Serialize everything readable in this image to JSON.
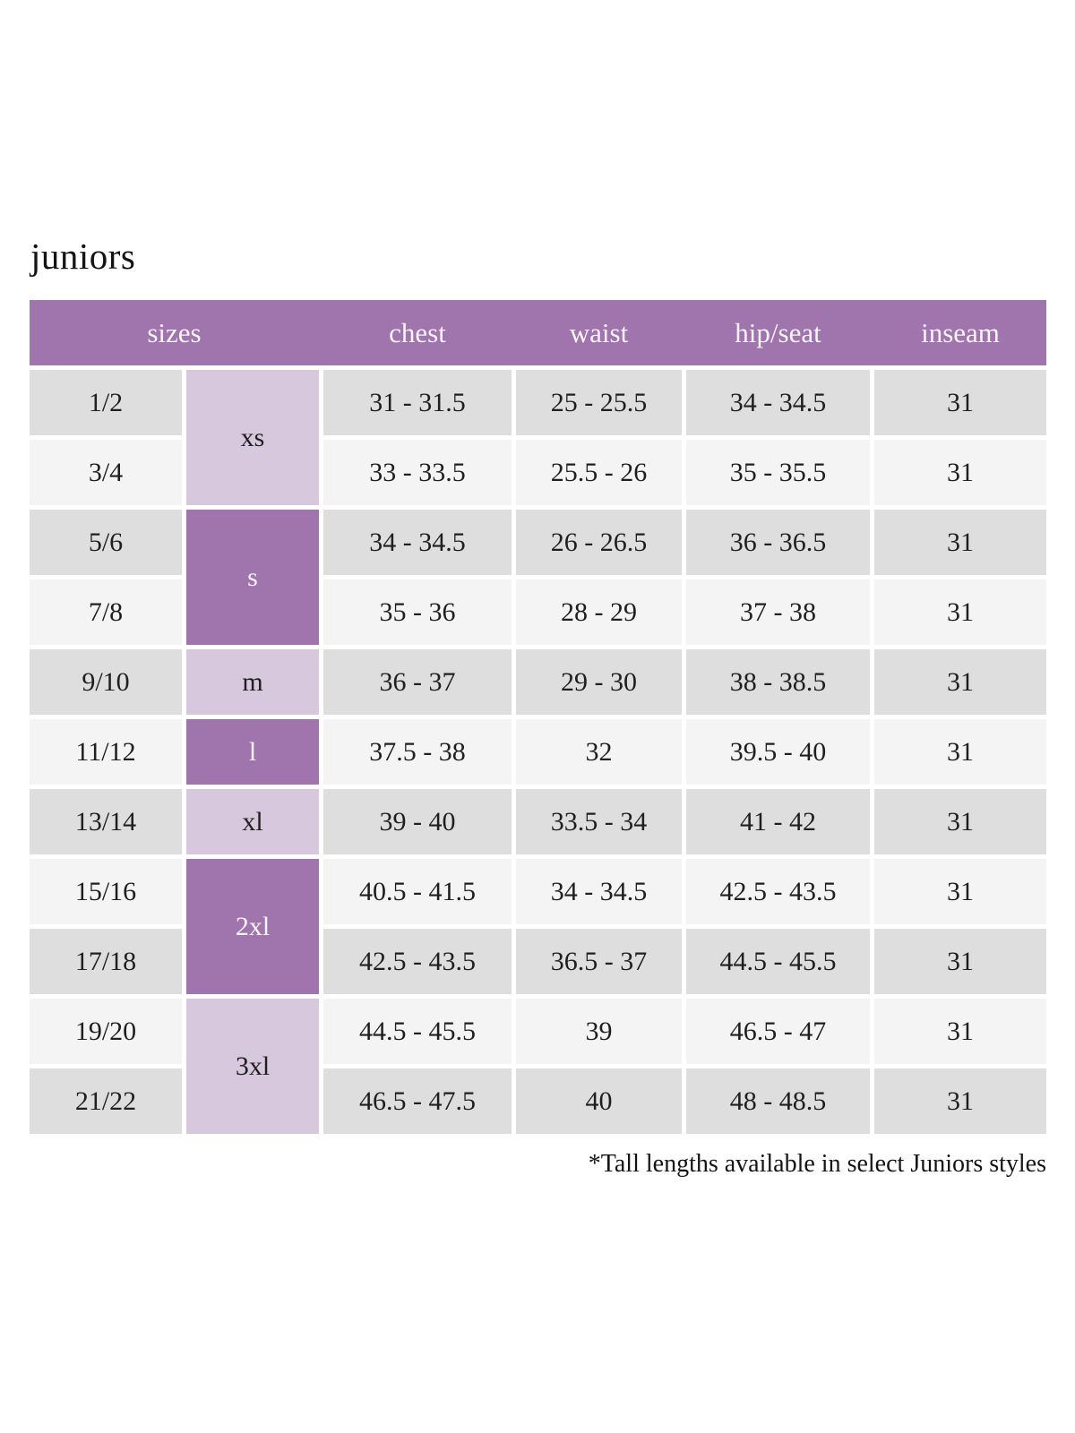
{
  "title": "juniors",
  "footnote": "*Tall lengths available in select Juniors styles",
  "colors": {
    "header_purple": "#a074ad",
    "group_purple_dark": "#a074ad",
    "group_purple_light": "#d8c8de",
    "row_gray": "#dedede",
    "row_light": "#f4f4f4",
    "header_text": "#f8f4f8",
    "body_text": "#1f1f1f"
  },
  "table": {
    "headers": [
      "sizes",
      "chest",
      "waist",
      "hip/seat",
      "inseam"
    ],
    "size_groups": [
      {
        "label": "xs",
        "rows": 2,
        "tone": "light"
      },
      {
        "label": "s",
        "rows": 2,
        "tone": "dark"
      },
      {
        "label": "m",
        "rows": 1,
        "tone": "light"
      },
      {
        "label": "l",
        "rows": 1,
        "tone": "dark"
      },
      {
        "label": "xl",
        "rows": 1,
        "tone": "light"
      },
      {
        "label": "2xl",
        "rows": 2,
        "tone": "dark"
      },
      {
        "label": "3xl",
        "rows": 2,
        "tone": "light"
      }
    ],
    "rows": [
      {
        "size": "1/2",
        "chest": "31 - 31.5",
        "waist": "25 - 25.5",
        "hip_seat": "34 - 34.5",
        "inseam": "31"
      },
      {
        "size": "3/4",
        "chest": "33 - 33.5",
        "waist": "25.5 - 26",
        "hip_seat": "35 - 35.5",
        "inseam": "31"
      },
      {
        "size": "5/6",
        "chest": "34 - 34.5",
        "waist": "26 - 26.5",
        "hip_seat": "36 - 36.5",
        "inseam": "31"
      },
      {
        "size": "7/8",
        "chest": "35 - 36",
        "waist": "28 - 29",
        "hip_seat": "37 - 38",
        "inseam": "31"
      },
      {
        "size": "9/10",
        "chest": "36 - 37",
        "waist": "29 - 30",
        "hip_seat": "38 - 38.5",
        "inseam": "31"
      },
      {
        "size": "11/12",
        "chest": "37.5 - 38",
        "waist": "32",
        "hip_seat": "39.5 - 40",
        "inseam": "31"
      },
      {
        "size": "13/14",
        "chest": "39 - 40",
        "waist": "33.5 - 34",
        "hip_seat": "41 - 42",
        "inseam": "31"
      },
      {
        "size": "15/16",
        "chest": "40.5 - 41.5",
        "waist": "34 - 34.5",
        "hip_seat": "42.5 - 43.5",
        "inseam": "31"
      },
      {
        "size": "17/18",
        "chest": "42.5 - 43.5",
        "waist": "36.5 - 37",
        "hip_seat": "44.5 - 45.5",
        "inseam": "31"
      },
      {
        "size": "19/20",
        "chest": "44.5 - 45.5",
        "waist": "39",
        "hip_seat": "46.5 - 47",
        "inseam": "31"
      },
      {
        "size": "21/22",
        "chest": "46.5 - 47.5",
        "waist": "40",
        "hip_seat": "48 - 48.5",
        "inseam": "31"
      }
    ]
  }
}
